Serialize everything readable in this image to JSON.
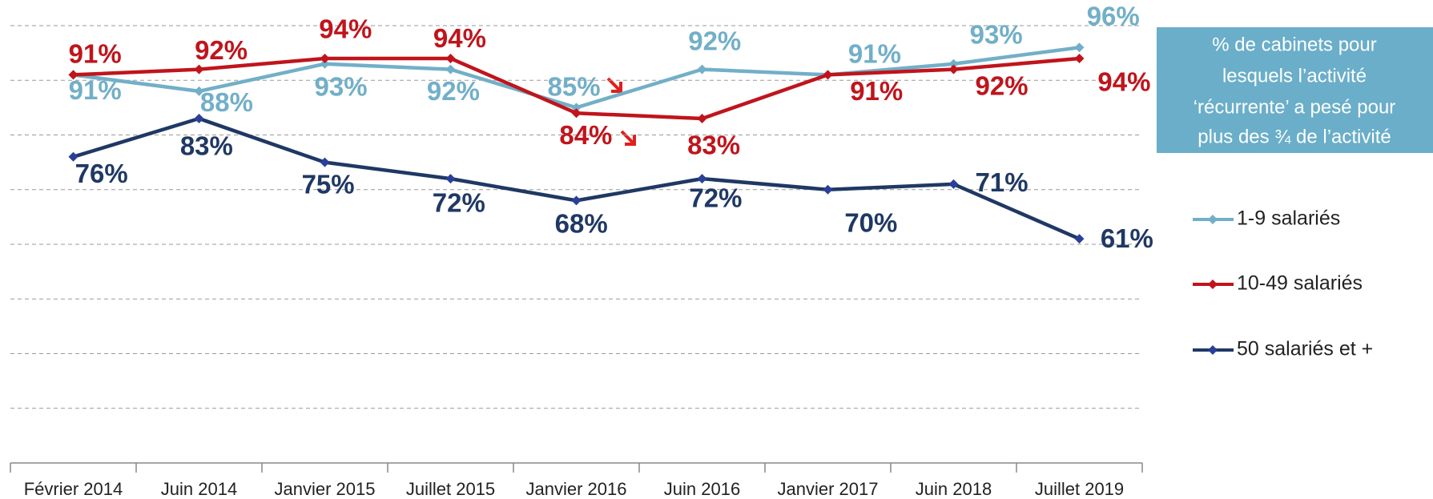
{
  "chart_data": {
    "type": "line",
    "categories": [
      "Février  2014",
      "Juin 2014",
      "Janvier 2015",
      "Juillet 2015",
      "Janvier 2016",
      "Juin 2016",
      "Janvier 2017",
      "Juin 2018",
      "Juillet 2019"
    ],
    "series": [
      {
        "name": "1-9 salariés",
        "color": "#72afc8",
        "values": [
          91,
          88,
          93,
          92,
          85,
          92,
          91,
          93,
          96
        ],
        "value_labels": [
          "91%",
          "88%",
          "93%",
          "92%",
          "85%",
          "92%",
          "91%",
          "93%",
          "96%"
        ]
      },
      {
        "name": "10-49 salariés",
        "color": "#c0141c",
        "values": [
          91,
          92,
          94,
          94,
          84,
          83,
          91,
          92,
          94
        ],
        "value_labels": [
          "91%",
          "92%",
          "94%",
          "94%",
          "84%",
          "83%",
          "91%",
          "92%",
          "94%"
        ]
      },
      {
        "name": "50 salariés et +",
        "color": "#1f3864",
        "values": [
          76,
          83,
          75,
          72,
          68,
          72,
          70,
          71,
          61
        ],
        "value_labels": [
          "76%",
          "83%",
          "75%",
          "72%",
          "68%",
          "72%",
          "70%",
          "71%",
          "61%"
        ]
      }
    ],
    "annotation": [
      "% de cabinets pour",
      "lesquels l’activité",
      "‘récurrente’ a pesé pour",
      "plus des ¾ de l’activité"
    ],
    "ylim": [
      20,
      100
    ],
    "yticks": [
      20,
      30,
      40,
      50,
      60,
      70,
      80,
      90,
      100
    ],
    "grid": true
  }
}
